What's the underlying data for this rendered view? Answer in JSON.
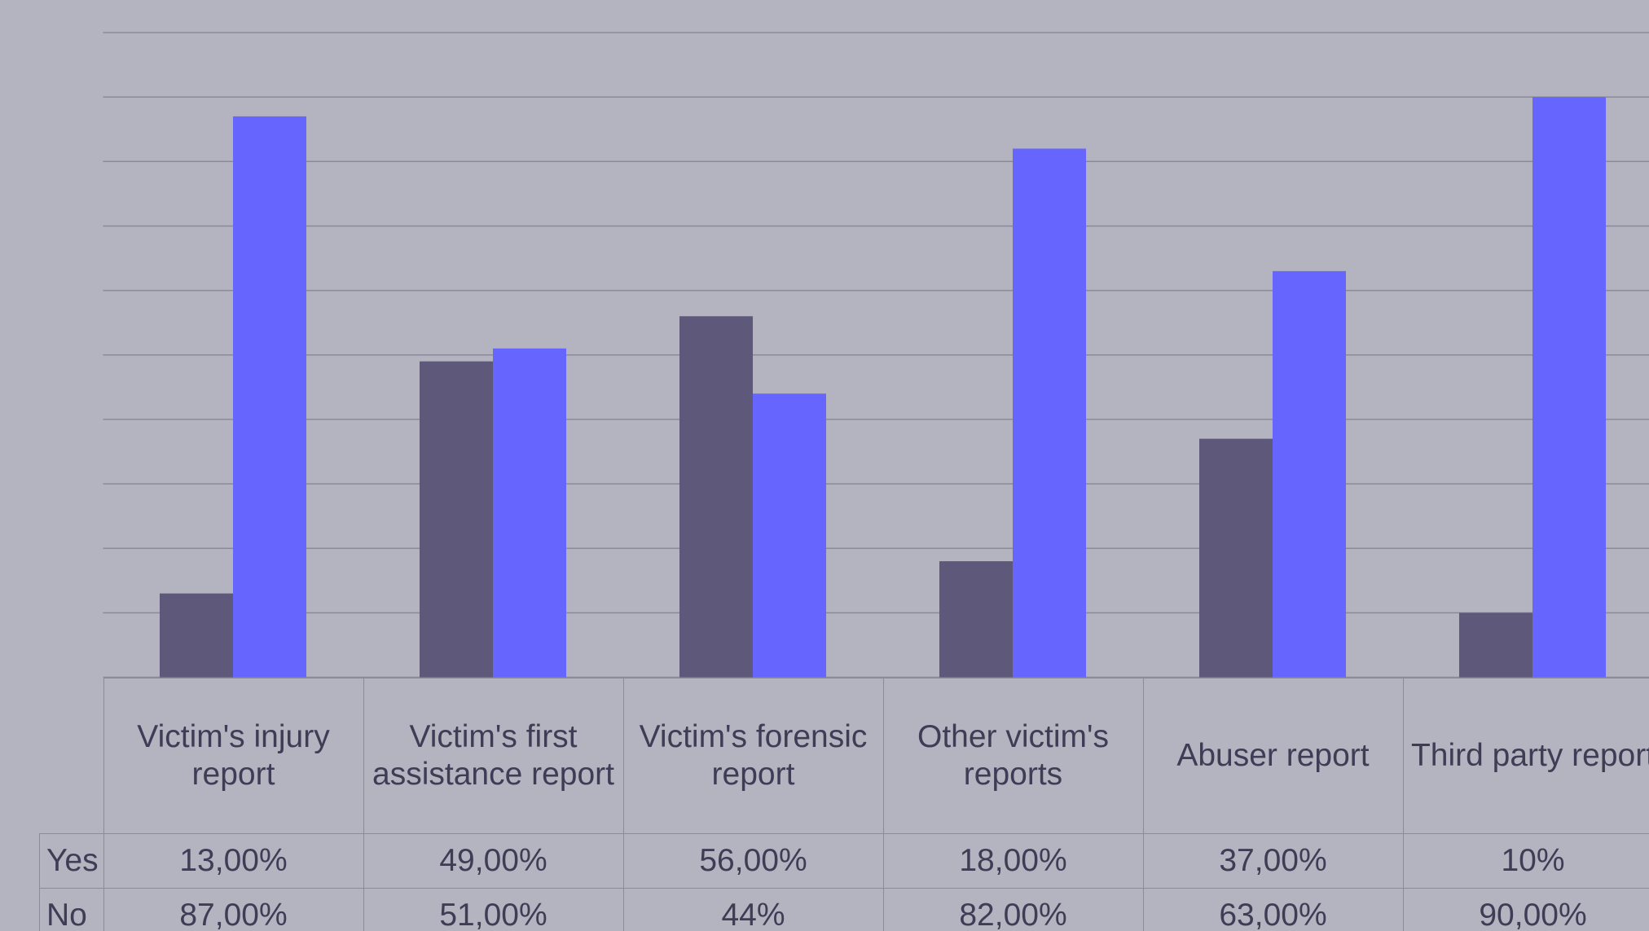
{
  "chart_data": {
    "type": "bar",
    "categories": [
      "Victim's injury report",
      "Victim's first assistance report",
      "Victim's forensic report",
      "Other victim's reports",
      "Abuser report",
      "Third party report"
    ],
    "series": [
      {
        "name": "Yes",
        "color": "#5e587a",
        "values": [
          13,
          49,
          56,
          18,
          37,
          10
        ],
        "value_labels": [
          "13,00%",
          "49,00%",
          "56,00%",
          "18,00%",
          "37,00%",
          "10%"
        ]
      },
      {
        "name": "No",
        "color": "#6666ff",
        "values": [
          87,
          51,
          44,
          82,
          63,
          90
        ],
        "value_labels": [
          "87,00%",
          "51,00%",
          "44%",
          "82,00%",
          "63,00%",
          "90,00%"
        ]
      }
    ],
    "ylim": [
      0,
      100
    ],
    "yticks": [
      0,
      10,
      20,
      30,
      40,
      50,
      60,
      70,
      80,
      90,
      100
    ],
    "grid": true
  }
}
